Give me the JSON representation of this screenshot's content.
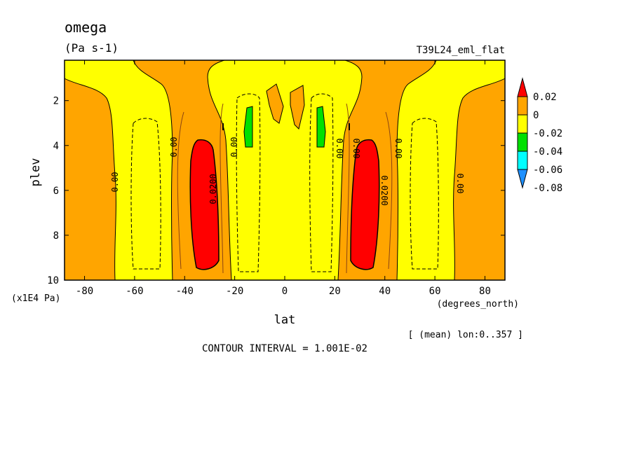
{
  "chart_data": {
    "type": "heatmap",
    "title": "omega",
    "subtitle": "(Pa s-1)",
    "run_label": "T39L24_eml_flat",
    "xlabel": "lat",
    "xunit": "(degrees_north)",
    "ylabel": "plev",
    "yunit": "(x1E4 Pa)",
    "x_ticks": [
      "-80",
      "-60",
      "-40",
      "-20",
      "0",
      "20",
      "40",
      "60",
      "80"
    ],
    "y_ticks": [
      "2",
      "4",
      "6",
      "8",
      "10"
    ],
    "xlim": [
      -88,
      88
    ],
    "ylim": [
      0.2,
      10
    ],
    "y_inverted": true,
    "colorbar": {
      "labels": [
        "0.02",
        "0",
        "-0.02",
        "-0.04",
        "-0.06",
        "-0.08"
      ],
      "colors": [
        "#ff0000",
        "#ffa500",
        "#ffff00",
        "#00e000",
        "#00ffff",
        "#1e90ff"
      ]
    },
    "contour_labels": [
      "0.00",
      "0.00",
      "0.0200",
      "0.00",
      "0.00",
      "0.00",
      "0.0200",
      "0.00",
      "0.00"
    ],
    "contour_interval_label": "CONTOUR INTERVAL = 1.001E-02",
    "mean_note": "[ (mean) lon:0..357 ]",
    "regions": [
      {
        "name": "orange-polar-south",
        "value_range": [
          0,
          0.01
        ],
        "x_range": [
          -88,
          -66
        ],
        "y_range": [
          1.0,
          10
        ]
      },
      {
        "name": "orange-subtropic-south",
        "value_range": [
          0,
          0.01
        ],
        "x_range": [
          -46,
          -22
        ],
        "y_range": [
          0.2,
          10
        ]
      },
      {
        "name": "red-core-south",
        "value_range": [
          0.02,
          0.03
        ],
        "x_range": [
          -39,
          -25
        ],
        "y_range": [
          3.6,
          9.5
        ]
      },
      {
        "name": "green-south",
        "value_range": [
          -0.04,
          -0.02
        ],
        "x_range": [
          -16,
          -13
        ],
        "y_range": [
          2.3,
          3.9
        ]
      },
      {
        "name": "green-north",
        "value_range": [
          -0.04,
          -0.02
        ],
        "x_range": [
          13,
          16
        ],
        "y_range": [
          2.3,
          3.9
        ]
      },
      {
        "name": "red-core-north",
        "value_range": [
          0.02,
          0.03
        ],
        "x_range": [
          26,
          39
        ],
        "y_range": [
          3.6,
          9.5
        ]
      },
      {
        "name": "orange-subtropic-north",
        "value_range": [
          0,
          0.01
        ],
        "x_range": [
          20,
          46
        ],
        "y_range": [
          0.2,
          10
        ]
      },
      {
        "name": "orange-polar-north",
        "value_range": [
          0,
          0.01
        ],
        "x_range": [
          66,
          88
        ],
        "y_range": [
          1.0,
          10
        ]
      }
    ]
  }
}
